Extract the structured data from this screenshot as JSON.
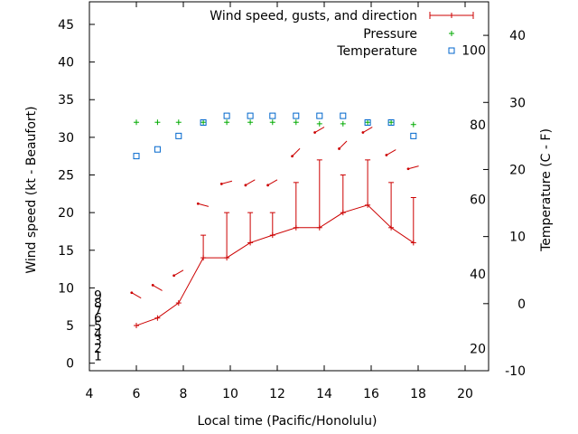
{
  "chart_data": {
    "type": "line",
    "title": "",
    "xlabel": "Local time (Pacific/Honolulu)",
    "ylabel_left": "Wind speed (kt - Beaufort)",
    "ylabel_right": "Temperature (C - F)",
    "xlim": [
      4,
      21
    ],
    "ylim_left": [
      -1,
      48
    ],
    "ylim_right_celsius": [
      -10,
      45
    ],
    "x_ticks": [
      4,
      6,
      8,
      10,
      12,
      14,
      16,
      18,
      20
    ],
    "y_ticks_left": [
      0,
      5,
      10,
      15,
      20,
      25,
      30,
      35,
      40,
      45
    ],
    "y_ticks_right_celsius": [
      -10,
      0,
      10,
      20,
      30,
      40
    ],
    "beaufort_labels": [
      {
        "value": 1,
        "label": "1"
      },
      {
        "value": 2,
        "label": "2"
      },
      {
        "value": 3,
        "label": "3"
      },
      {
        "value": 4,
        "label": "4"
      },
      {
        "value": 5,
        "label": "5"
      },
      {
        "value": 6,
        "label": "6"
      },
      {
        "value": 7,
        "label": "7"
      },
      {
        "value": 8,
        "label": "8"
      },
      {
        "value": 9,
        "label": "9"
      }
    ],
    "fahrenheit_labels": [
      {
        "value": 20,
        "label": "20"
      },
      {
        "value": 40,
        "label": "40"
      },
      {
        "value": 60,
        "label": "60"
      },
      {
        "value": 80,
        "label": "80"
      },
      {
        "value": 100,
        "label": "100"
      }
    ],
    "legend": {
      "position": "top-right",
      "entries": [
        "Wind speed, gusts, and direction",
        "Pressure",
        "Temperature"
      ]
    },
    "series": [
      {
        "name": "Wind speed, gusts, and direction",
        "color": "#cc0000",
        "x": [
          6,
          6.9,
          7.8,
          8.85,
          9.85,
          10.85,
          11.8,
          12.8,
          13.8,
          14.8,
          15.85,
          16.85,
          17.8
        ],
        "values": [
          5,
          6,
          8,
          14,
          14,
          16,
          17,
          18,
          18,
          20,
          21,
          18,
          16
        ],
        "gusts": [
          5,
          6,
          8,
          17,
          20,
          20,
          20,
          24,
          27,
          25,
          27,
          24,
          22
        ],
        "direction_deg": [
          300,
          300,
          240,
          285,
          255,
          240,
          240,
          225,
          240,
          225,
          240,
          240,
          255
        ],
        "arrow_y": [
          9,
          10,
          12,
          21,
          24,
          24,
          24,
          28,
          31,
          29,
          31,
          28,
          26
        ]
      },
      {
        "name": "Pressure",
        "color": "#00aa00",
        "x": [
          6,
          6.9,
          7.8,
          8.85,
          9.85,
          10.85,
          11.8,
          12.8,
          13.8,
          14.8,
          15.85,
          16.85,
          17.8
        ],
        "values": [
          32,
          32,
          32,
          32,
          32,
          32,
          32,
          32,
          31.8,
          31.8,
          32,
          32,
          31.7
        ]
      },
      {
        "name": "Temperature",
        "color": "#0066cc",
        "x": [
          6,
          6.9,
          7.8,
          8.85,
          9.85,
          10.85,
          11.8,
          12.8,
          13.8,
          14.8,
          15.85,
          16.85,
          17.8
        ],
        "values_celsius": [
          22,
          23,
          25,
          27,
          28,
          28,
          28,
          28,
          28,
          28,
          27,
          27,
          25
        ]
      }
    ]
  }
}
